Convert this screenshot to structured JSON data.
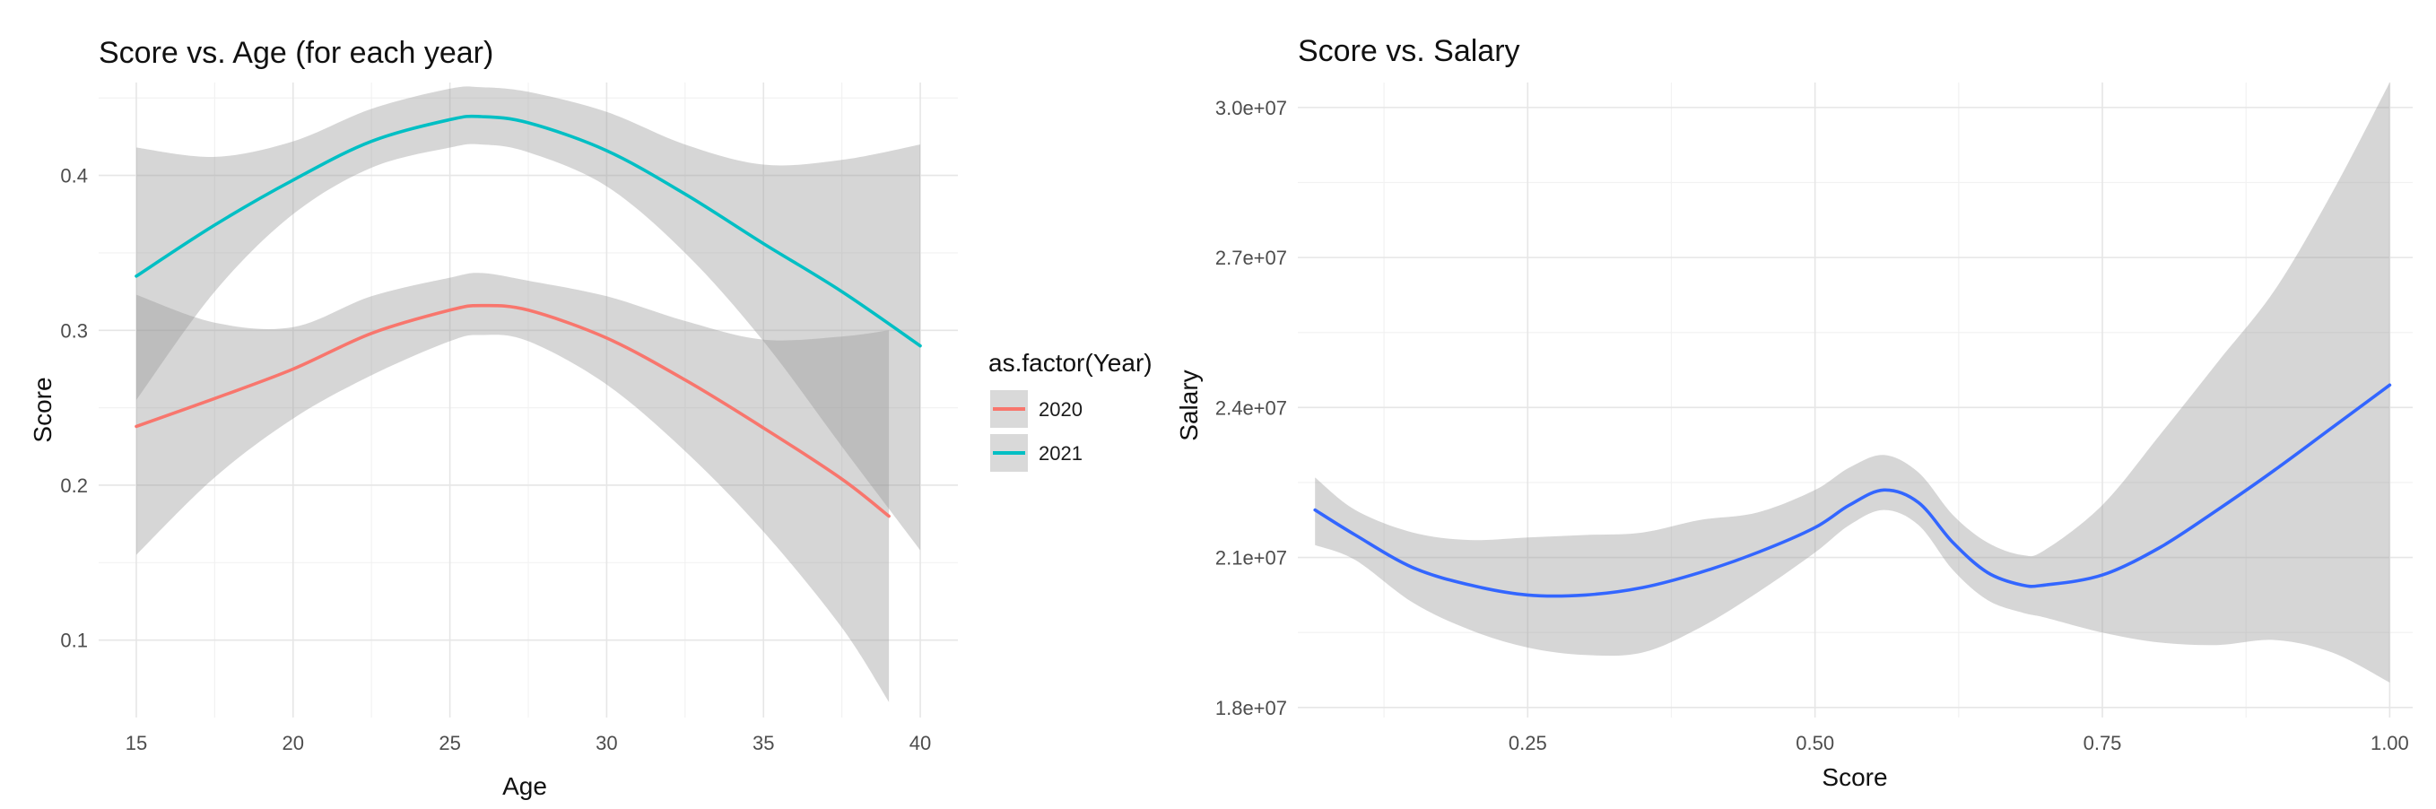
{
  "chart_data": [
    {
      "type": "line",
      "title": "Score vs. Age (for each year)",
      "xlabel": "Age",
      "ylabel": "Score",
      "xlim": [
        13.8,
        41.2
      ],
      "ylim": [
        0.05,
        0.46
      ],
      "x_ticks": [
        15,
        20,
        25,
        30,
        35,
        40
      ],
      "y_ticks": [
        0.1,
        0.2,
        0.3,
        0.4
      ],
      "x_tick_labels": [
        "15",
        "20",
        "25",
        "30",
        "35",
        "40"
      ],
      "y_tick_labels": [
        "0.1",
        "0.2",
        "0.3",
        "0.4"
      ],
      "grid": true,
      "legend": {
        "title": "as.factor(Year)",
        "placement": "right",
        "entries": [
          "2020",
          "2021"
        ]
      },
      "series": [
        {
          "name": "2020",
          "color": "#F8766D",
          "x": [
            15,
            17.5,
            20,
            22.5,
            25,
            26,
            27.5,
            30,
            32.5,
            35,
            37.5,
            39
          ],
          "y": [
            0.238,
            0.256,
            0.275,
            0.298,
            0.313,
            0.316,
            0.313,
            0.295,
            0.268,
            0.237,
            0.204,
            0.18
          ],
          "lower": [
            0.155,
            0.205,
            0.243,
            0.271,
            0.293,
            0.297,
            0.293,
            0.265,
            0.222,
            0.17,
            0.108,
            0.06
          ],
          "upper": [
            0.323,
            0.305,
            0.302,
            0.322,
            0.334,
            0.337,
            0.332,
            0.322,
            0.306,
            0.294,
            0.296,
            0.3
          ]
        },
        {
          "name": "2021",
          "color": "#00BFC4",
          "x": [
            15,
            17.5,
            20,
            22.5,
            25,
            26,
            27.5,
            30,
            32.5,
            35,
            37.5,
            40
          ],
          "y": [
            0.335,
            0.368,
            0.397,
            0.422,
            0.436,
            0.438,
            0.434,
            0.416,
            0.388,
            0.356,
            0.325,
            0.29
          ],
          "lower": [
            0.255,
            0.325,
            0.375,
            0.405,
            0.418,
            0.42,
            0.415,
            0.393,
            0.35,
            0.293,
            0.225,
            0.158
          ],
          "upper": [
            0.418,
            0.412,
            0.422,
            0.443,
            0.456,
            0.457,
            0.454,
            0.441,
            0.42,
            0.407,
            0.41,
            0.42
          ]
        }
      ]
    },
    {
      "type": "line",
      "title": "Score vs. Salary",
      "xlabel": "Score",
      "ylabel": "Salary",
      "xlim": [
        0.05,
        1.02
      ],
      "ylim": [
        17800000,
        30500000
      ],
      "x_ticks": [
        0.25,
        0.5,
        0.75,
        1.0
      ],
      "y_ticks": [
        18000000,
        21000000,
        24000000,
        27000000,
        30000000
      ],
      "x_tick_labels": [
        "0.25",
        "0.50",
        "0.75",
        "1.00"
      ],
      "y_tick_labels": [
        "1.8e+07",
        "2.1e+07",
        "2.4e+07",
        "2.7e+07",
        "3.0e+07"
      ],
      "grid": true,
      "series": [
        {
          "color": "#3366FF",
          "x": [
            0.065,
            0.1,
            0.15,
            0.2,
            0.25,
            0.3,
            0.35,
            0.4,
            0.45,
            0.5,
            0.53,
            0.56,
            0.59,
            0.62,
            0.65,
            0.68,
            0.7,
            0.75,
            0.8,
            0.85,
            0.9,
            0.95,
            1.0
          ],
          "y": [
            21950000,
            21450000,
            20800000,
            20450000,
            20250000,
            20250000,
            20400000,
            20700000,
            21100000,
            21600000,
            22050000,
            22350000,
            22100000,
            21300000,
            20700000,
            20450000,
            20450000,
            20650000,
            21200000,
            21950000,
            22750000,
            23600000,
            24450000
          ],
          "lower": [
            21250000,
            20950000,
            20100000,
            19550000,
            19200000,
            19050000,
            19100000,
            19600000,
            20300000,
            21100000,
            21650000,
            21950000,
            21650000,
            20750000,
            20150000,
            19900000,
            19800000,
            19500000,
            19300000,
            19250000,
            19350000,
            19100000,
            18500000
          ],
          "upper": [
            22600000,
            21950000,
            21500000,
            21350000,
            21400000,
            21450000,
            21500000,
            21750000,
            21900000,
            22350000,
            22800000,
            23050000,
            22700000,
            21850000,
            21300000,
            21050000,
            21150000,
            22050000,
            23450000,
            24900000,
            26350000,
            28300000,
            30500000
          ]
        }
      ]
    }
  ]
}
